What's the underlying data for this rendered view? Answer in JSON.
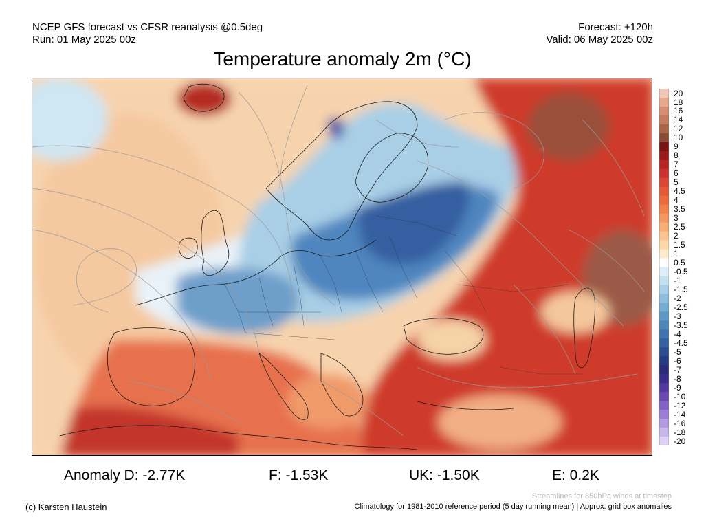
{
  "header": {
    "source": "NCEP GFS forecast vs CFSR reanalysis @0.5deg",
    "run": "Run: 01 May 2025 00z",
    "forecast": "Forecast: +120h",
    "valid": "Valid: 06 May 2025 00z"
  },
  "title": "Temperature anomaly 2m (°C)",
  "colorbar": {
    "labels": [
      "20",
      "18",
      "16",
      "14",
      "12",
      "10",
      "9",
      "8",
      "7",
      "6",
      "5",
      "4.5",
      "4",
      "3.5",
      "3",
      "2.5",
      "2",
      "1.5",
      "1",
      "0.5",
      "-0.5",
      "-1",
      "-1.5",
      "-2",
      "-2.5",
      "-3",
      "-3.5",
      "-4",
      "-4.5",
      "-5",
      "-6",
      "-7",
      "-8",
      "-9",
      "-10",
      "-12",
      "-14",
      "-16",
      "-18",
      "-20"
    ],
    "colors": [
      "#f3c7b6",
      "#e6a98e",
      "#d58f72",
      "#c47b5e",
      "#aa6448",
      "#8c4b35",
      "#7a1414",
      "#9a1a1a",
      "#b82424",
      "#cc3030",
      "#db4636",
      "#e5583a",
      "#ec6a3e",
      "#f1804b",
      "#f49760",
      "#f7ad74",
      "#f9c48d",
      "#fbd8a8",
      "#fde9cb",
      "#ffffff",
      "#ddeef8",
      "#c3e1f1",
      "#a7d0e7",
      "#8dbedd",
      "#74acd2",
      "#5f98c6",
      "#4d85bb",
      "#3f72ae",
      "#33609f",
      "#2b4c8f",
      "#273a80",
      "#2b2a78",
      "#3a2c8a",
      "#52399e",
      "#6a49b3",
      "#8362c7",
      "#9c7ed6",
      "#b39ae2",
      "#c9b6ec",
      "#ddd0f5"
    ]
  },
  "stats": {
    "D": "Anomaly D: -2.77K",
    "F": "F: -1.53K",
    "UK": "UK: -1.50K",
    "E": "E: 0.2K"
  },
  "footer": {
    "credit": "(c) Karsten Haustein",
    "streamlines": "Streamlines for 850hPa winds at timestep",
    "climatology": "Climatology for 1981-2010 reference period (5 day running mean) | Approx. grid box anomalies"
  }
}
